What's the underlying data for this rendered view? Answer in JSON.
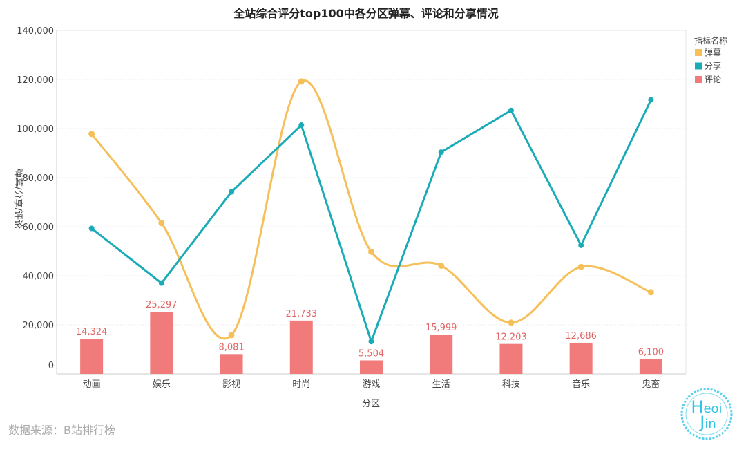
{
  "chart_data": {
    "type": "bar+line",
    "title": "全站综合评分top100中各分区弹幕、评论和分享情况",
    "xlabel": "分区",
    "ylabel": "弹幕/分享/评论",
    "ylim": [
      0,
      140000
    ],
    "yticks": [
      "0",
      "20,000",
      "40,000",
      "60,000",
      "80,000",
      "100,000",
      "120,000",
      "140,000"
    ],
    "categories": [
      "动画",
      "娱乐",
      "影视",
      "时尚",
      "游戏",
      "生活",
      "科技",
      "音乐",
      "鬼畜"
    ],
    "legend": {
      "title": "指标名称",
      "position": "right-top"
    },
    "series": [
      {
        "name": "弹幕",
        "type": "line",
        "smooth": true,
        "color": "#f5bf5a",
        "values": [
          97800,
          61500,
          15800,
          119200,
          49800,
          44100,
          20900,
          43600,
          33300
        ]
      },
      {
        "name": "分享",
        "type": "line",
        "smooth": false,
        "color": "#1aabb6",
        "values": [
          59300,
          37000,
          74200,
          101400,
          13200,
          90400,
          107400,
          52400,
          111700
        ]
      },
      {
        "name": "评论",
        "type": "bar",
        "color": "#f17b7b",
        "values": [
          14324,
          25297,
          8081,
          21733,
          5504,
          15999,
          12203,
          12686,
          6100
        ],
        "labels": [
          "14,324",
          "25,297",
          "8,081",
          "21,733",
          "5,504",
          "15,999",
          "12,203",
          "12,686",
          "6,100"
        ]
      }
    ]
  },
  "source": "数据来源：B站排行榜",
  "watermark": {
    "line1": "Heoi",
    "line2": "Jin",
    "first1": "H",
    "rest1": "eoi",
    "first2": "J",
    "rest2": "in"
  }
}
